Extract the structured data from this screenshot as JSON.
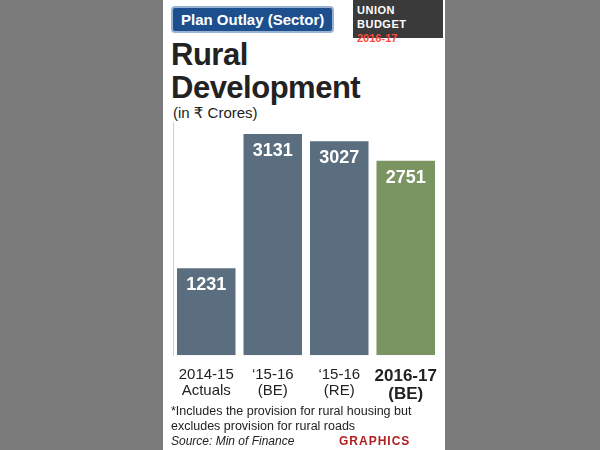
{
  "chart_data": {
    "type": "bar",
    "title": "Rural Development",
    "subtitle": "(in ₹ Crores)",
    "categories": [
      "2014-15 Actuals",
      "‘15-16 (BE)",
      "‘15-16 (RE)",
      "2016-17 (BE)"
    ],
    "values": [
      1231,
      3131,
      3027,
      2751
    ],
    "colors": [
      "#5b6e7f",
      "#5b6e7f",
      "#5b6e7f",
      "#7b9562"
    ],
    "ylim": [
      0,
      3300
    ],
    "yticks": [],
    "grid": false,
    "data_labels": true,
    "tick_labels": "x",
    "annotations": {
      "header": "Plan Outlay (Sector)",
      "badge_top": "UNION BUDGET",
      "badge_bottom": "2016-17",
      "note": "*Includes the provision for rural housing but excludes provision for rural roads",
      "source": "Source: Min of Finance",
      "credit": "GRAPHICS"
    }
  }
}
